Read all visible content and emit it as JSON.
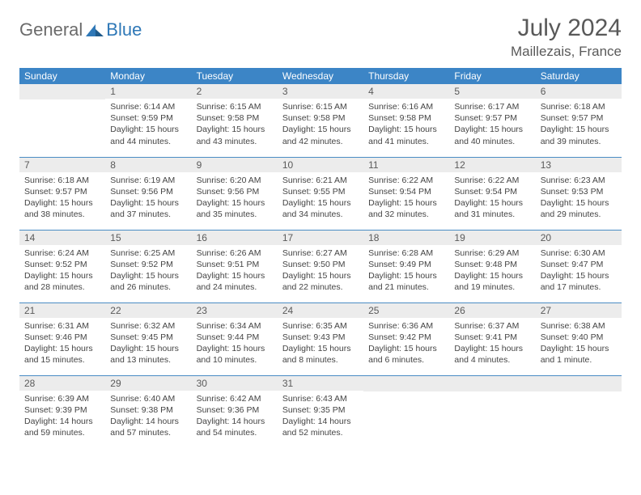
{
  "logo": {
    "text1": "General",
    "text2": "Blue"
  },
  "title": "July 2024",
  "location": "Maillezais, France",
  "colors": {
    "header_bg": "#3c85c6",
    "header_text": "#ffffff",
    "daynum_bg": "#ececec",
    "daynum_text": "#5a5a5a",
    "body_text": "#444444",
    "row_border": "#4a8cc4",
    "title_text": "#595959",
    "logo_gray": "#6b6b6b",
    "logo_blue": "#2f78b7"
  },
  "weekdays": [
    "Sunday",
    "Monday",
    "Tuesday",
    "Wednesday",
    "Thursday",
    "Friday",
    "Saturday"
  ],
  "weeks": [
    [
      null,
      {
        "n": "1",
        "sunrise": "6:14 AM",
        "sunset": "9:59 PM",
        "daylight": "15 hours and 44 minutes."
      },
      {
        "n": "2",
        "sunrise": "6:15 AM",
        "sunset": "9:58 PM",
        "daylight": "15 hours and 43 minutes."
      },
      {
        "n": "3",
        "sunrise": "6:15 AM",
        "sunset": "9:58 PM",
        "daylight": "15 hours and 42 minutes."
      },
      {
        "n": "4",
        "sunrise": "6:16 AM",
        "sunset": "9:58 PM",
        "daylight": "15 hours and 41 minutes."
      },
      {
        "n": "5",
        "sunrise": "6:17 AM",
        "sunset": "9:57 PM",
        "daylight": "15 hours and 40 minutes."
      },
      {
        "n": "6",
        "sunrise": "6:18 AM",
        "sunset": "9:57 PM",
        "daylight": "15 hours and 39 minutes."
      }
    ],
    [
      {
        "n": "7",
        "sunrise": "6:18 AM",
        "sunset": "9:57 PM",
        "daylight": "15 hours and 38 minutes."
      },
      {
        "n": "8",
        "sunrise": "6:19 AM",
        "sunset": "9:56 PM",
        "daylight": "15 hours and 37 minutes."
      },
      {
        "n": "9",
        "sunrise": "6:20 AM",
        "sunset": "9:56 PM",
        "daylight": "15 hours and 35 minutes."
      },
      {
        "n": "10",
        "sunrise": "6:21 AM",
        "sunset": "9:55 PM",
        "daylight": "15 hours and 34 minutes."
      },
      {
        "n": "11",
        "sunrise": "6:22 AM",
        "sunset": "9:54 PM",
        "daylight": "15 hours and 32 minutes."
      },
      {
        "n": "12",
        "sunrise": "6:22 AM",
        "sunset": "9:54 PM",
        "daylight": "15 hours and 31 minutes."
      },
      {
        "n": "13",
        "sunrise": "6:23 AM",
        "sunset": "9:53 PM",
        "daylight": "15 hours and 29 minutes."
      }
    ],
    [
      {
        "n": "14",
        "sunrise": "6:24 AM",
        "sunset": "9:52 PM",
        "daylight": "15 hours and 28 minutes."
      },
      {
        "n": "15",
        "sunrise": "6:25 AM",
        "sunset": "9:52 PM",
        "daylight": "15 hours and 26 minutes."
      },
      {
        "n": "16",
        "sunrise": "6:26 AM",
        "sunset": "9:51 PM",
        "daylight": "15 hours and 24 minutes."
      },
      {
        "n": "17",
        "sunrise": "6:27 AM",
        "sunset": "9:50 PM",
        "daylight": "15 hours and 22 minutes."
      },
      {
        "n": "18",
        "sunrise": "6:28 AM",
        "sunset": "9:49 PM",
        "daylight": "15 hours and 21 minutes."
      },
      {
        "n": "19",
        "sunrise": "6:29 AM",
        "sunset": "9:48 PM",
        "daylight": "15 hours and 19 minutes."
      },
      {
        "n": "20",
        "sunrise": "6:30 AM",
        "sunset": "9:47 PM",
        "daylight": "15 hours and 17 minutes."
      }
    ],
    [
      {
        "n": "21",
        "sunrise": "6:31 AM",
        "sunset": "9:46 PM",
        "daylight": "15 hours and 15 minutes."
      },
      {
        "n": "22",
        "sunrise": "6:32 AM",
        "sunset": "9:45 PM",
        "daylight": "15 hours and 13 minutes."
      },
      {
        "n": "23",
        "sunrise": "6:34 AM",
        "sunset": "9:44 PM",
        "daylight": "15 hours and 10 minutes."
      },
      {
        "n": "24",
        "sunrise": "6:35 AM",
        "sunset": "9:43 PM",
        "daylight": "15 hours and 8 minutes."
      },
      {
        "n": "25",
        "sunrise": "6:36 AM",
        "sunset": "9:42 PM",
        "daylight": "15 hours and 6 minutes."
      },
      {
        "n": "26",
        "sunrise": "6:37 AM",
        "sunset": "9:41 PM",
        "daylight": "15 hours and 4 minutes."
      },
      {
        "n": "27",
        "sunrise": "6:38 AM",
        "sunset": "9:40 PM",
        "daylight": "15 hours and 1 minute."
      }
    ],
    [
      {
        "n": "28",
        "sunrise": "6:39 AM",
        "sunset": "9:39 PM",
        "daylight": "14 hours and 59 minutes."
      },
      {
        "n": "29",
        "sunrise": "6:40 AM",
        "sunset": "9:38 PM",
        "daylight": "14 hours and 57 minutes."
      },
      {
        "n": "30",
        "sunrise": "6:42 AM",
        "sunset": "9:36 PM",
        "daylight": "14 hours and 54 minutes."
      },
      {
        "n": "31",
        "sunrise": "6:43 AM",
        "sunset": "9:35 PM",
        "daylight": "14 hours and 52 minutes."
      },
      null,
      null,
      null
    ]
  ]
}
